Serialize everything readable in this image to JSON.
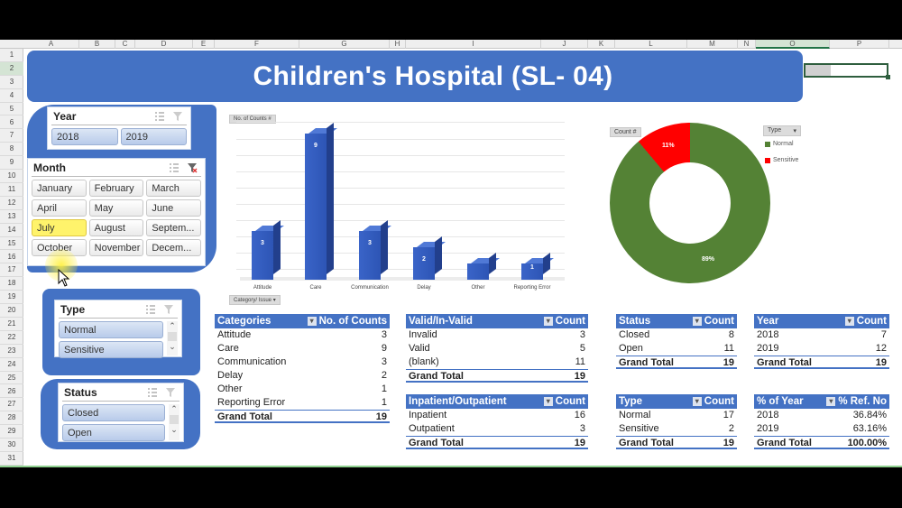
{
  "spreadsheet": {
    "columns": [
      "A",
      "B",
      "C",
      "D",
      "E",
      "F",
      "G",
      "H",
      "I",
      "J",
      "K",
      "L",
      "M",
      "N",
      "O",
      "P"
    ],
    "rows": [
      "1",
      "2",
      "3",
      "4",
      "5",
      "6",
      "7",
      "8",
      "9",
      "10",
      "11",
      "12",
      "13",
      "14",
      "15",
      "16",
      "17",
      "18",
      "19",
      "20",
      "21",
      "22",
      "23",
      "24",
      "25",
      "26",
      "27",
      "28",
      "29",
      "30",
      "31"
    ],
    "selected_row": "2",
    "selected_column": "O"
  },
  "dashboard": {
    "title": "Children's Hospital (SL- 04)"
  },
  "slicers": {
    "year": {
      "title": "Year",
      "items": [
        "2018",
        "2019"
      ]
    },
    "month": {
      "title": "Month",
      "items": [
        "January",
        "February",
        "March",
        "April",
        "May",
        "June",
        "July",
        "August",
        "Septem...",
        "October",
        "November",
        "Decem..."
      ],
      "hovered": "July"
    },
    "type": {
      "title": "Type",
      "items": [
        "Normal",
        "Sensitive"
      ]
    },
    "status": {
      "title": "Status",
      "items": [
        "Closed",
        "Open"
      ]
    }
  },
  "bar_chart": {
    "value_button": "No. of Counts #",
    "axis_button": "Category/ Issue",
    "colors": {
      "bar": "#3a64c8"
    }
  },
  "donut_chart": {
    "value_button": "Count #",
    "legend_button": "Type",
    "colors": {
      "Normal": "#548235",
      "Sensitive": "#ff0000"
    }
  },
  "chart_data": [
    {
      "type": "bar",
      "title": "",
      "xlabel": "Category/ Issue",
      "ylabel": "No. of Counts",
      "categories": [
        "Attitude",
        "Care",
        "Communication",
        "Delay",
        "Other",
        "Reporting Error"
      ],
      "values": [
        3,
        9,
        3,
        2,
        1,
        1
      ],
      "data_labels": [
        "3",
        "9",
        "3",
        "2",
        "",
        "1"
      ],
      "ylim": [
        0,
        10
      ],
      "grid": true,
      "style": "3d-column"
    },
    {
      "type": "pie",
      "subtype": "donut",
      "categories": [
        "Normal",
        "Sensitive"
      ],
      "values": [
        89,
        11
      ],
      "labels": [
        "89%",
        "11%"
      ],
      "legend_title": "Type",
      "legend_position": "right"
    }
  ],
  "pivots": {
    "categories": {
      "headers": [
        "Categories",
        "No. of Counts"
      ],
      "rows": [
        [
          "Attitude",
          "3"
        ],
        [
          "Care",
          "9"
        ],
        [
          "Communication",
          "3"
        ],
        [
          "Delay",
          "2"
        ],
        [
          "Other",
          "1"
        ],
        [
          "Reporting Error",
          "1"
        ]
      ],
      "total": [
        "Grand Total",
        "19"
      ]
    },
    "valid": {
      "headers": [
        "Valid/In-Valid",
        "Count"
      ],
      "rows": [
        [
          "Invalid",
          "3"
        ],
        [
          "Valid",
          "5"
        ],
        [
          "(blank)",
          "11"
        ]
      ],
      "total": [
        "Grand Total",
        "19"
      ]
    },
    "inpatient": {
      "headers": [
        "Inpatient/Outpatient",
        "Count"
      ],
      "rows": [
        [
          "Inpatient",
          "16"
        ],
        [
          "Outpatient",
          "3"
        ]
      ],
      "total": [
        "Grand Total",
        "19"
      ]
    },
    "status": {
      "headers": [
        "Status",
        "Count"
      ],
      "rows": [
        [
          "Closed",
          "8"
        ],
        [
          "Open",
          "11"
        ]
      ],
      "total": [
        "Grand Total",
        "19"
      ]
    },
    "type": {
      "headers": [
        "Type",
        "Count"
      ],
      "rows": [
        [
          "Normal",
          "17"
        ],
        [
          "Sensitive",
          "2"
        ]
      ],
      "total": [
        "Grand Total",
        "19"
      ]
    },
    "year": {
      "headers": [
        "Year",
        "Count"
      ],
      "rows": [
        [
          "2018",
          "7"
        ],
        [
          "2019",
          "12"
        ]
      ],
      "total": [
        "Grand Total",
        "19"
      ]
    },
    "pct_year": {
      "headers": [
        "% of Year",
        "% Ref. No"
      ],
      "rows": [
        [
          "2018",
          "36.84%"
        ],
        [
          "2019",
          "63.16%"
        ]
      ],
      "total": [
        "Grand Total",
        "100.00%"
      ]
    }
  }
}
